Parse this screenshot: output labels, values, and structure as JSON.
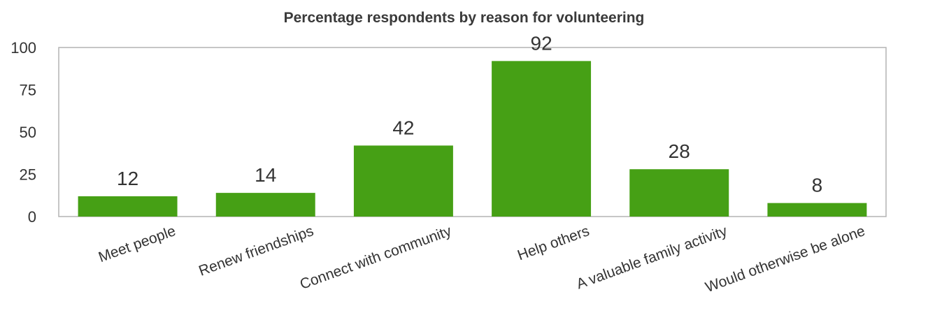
{
  "chart_data": {
    "type": "bar",
    "title": "Percentage respondents by reason for volunteering",
    "categories": [
      "Meet people",
      "Renew friendships",
      "Connect with community",
      "Help others",
      "A valuable family activity",
      "Would otherwise be alone"
    ],
    "values": [
      12,
      14,
      42,
      92,
      28,
      8
    ],
    "data_labels": [
      "12",
      "14",
      "42",
      "92",
      "28",
      "8"
    ],
    "ylim": [
      0,
      100
    ],
    "yticks": [
      0,
      25,
      50,
      75,
      100
    ],
    "ytick_labels": [
      "0",
      "25",
      "50",
      "75",
      "100"
    ],
    "xlabel": "",
    "ylabel": "",
    "grid": false,
    "legend": "none",
    "colors": {
      "bar": "#46a015",
      "frame": "#b3b3b3",
      "text": "#333333"
    }
  }
}
